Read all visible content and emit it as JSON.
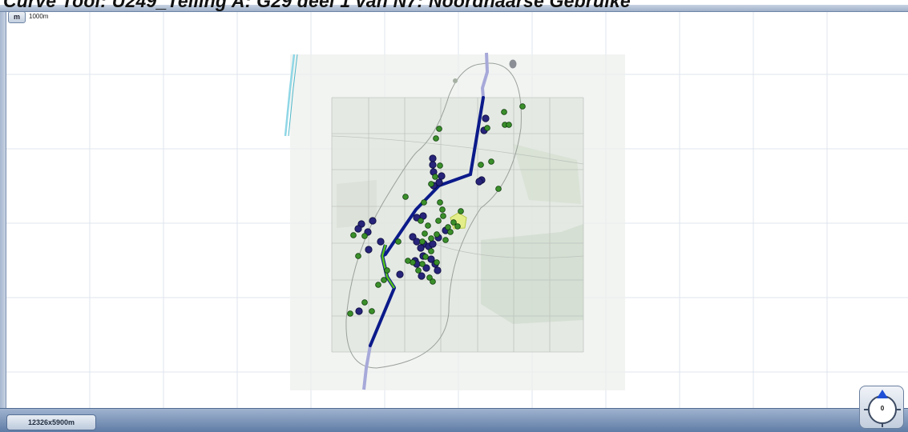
{
  "window": {
    "title": "Curve Tool: U249_Telling A: G29 deel 1 van N7: Noordhaarse Gebruike"
  },
  "scale": {
    "unit_button": "m",
    "scale_label": "1000m"
  },
  "status": {
    "map_size": "12326x5900m"
  },
  "compass": {
    "heading": "0"
  },
  "map": {
    "colors": {
      "background": "#ffffff",
      "grid": "#dfe4ee",
      "route_main": "#0b1a8a",
      "route_faded": "#a7a9d9",
      "route_highlight": "#55c21a",
      "point_green": "#3a8f2a",
      "point_blue": "#27247a",
      "polygon_highlight": "#e3ee8a",
      "canal": "#8fd7e6"
    }
  }
}
